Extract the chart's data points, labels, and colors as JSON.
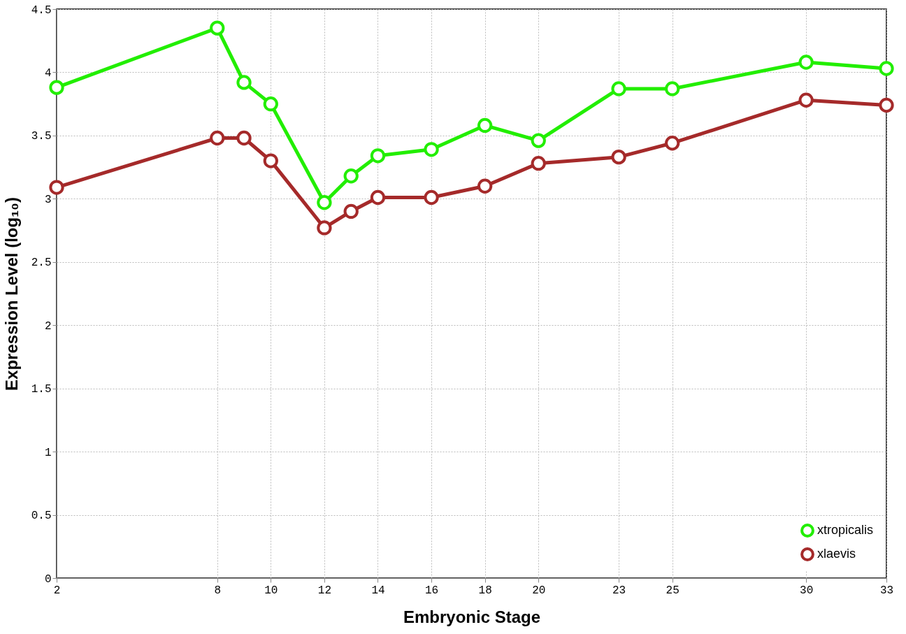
{
  "chart_data": {
    "type": "line",
    "xlabel": "Embryonic Stage",
    "ylabel": "Expression Level (log₁₀)",
    "x": [
      2,
      8,
      9,
      10,
      12,
      13,
      14,
      16,
      18,
      20,
      23,
      25,
      30,
      33
    ],
    "series": [
      {
        "name": "xtropicalis",
        "color": "#22ee00",
        "values": [
          3.88,
          4.35,
          3.92,
          3.75,
          2.97,
          3.18,
          3.34,
          3.39,
          3.58,
          3.46,
          3.87,
          3.87,
          4.08,
          4.03
        ]
      },
      {
        "name": "xlaevis",
        "color": "#a52a2a",
        "values": [
          3.09,
          3.48,
          3.48,
          3.3,
          2.77,
          2.9,
          3.01,
          3.01,
          3.1,
          3.28,
          3.33,
          3.44,
          3.78,
          3.74
        ]
      }
    ],
    "xlim": [
      2,
      33
    ],
    "xticks": [
      2,
      8,
      10,
      12,
      14,
      16,
      18,
      20,
      23,
      25,
      30,
      33
    ],
    "ylim": [
      0,
      4.5
    ],
    "yticks": [
      0,
      0.5,
      1,
      1.5,
      2,
      2.5,
      3,
      3.5,
      4,
      4.5
    ],
    "grid": true,
    "legend": "bottom right",
    "marker": "circle",
    "line_style": "solid"
  }
}
